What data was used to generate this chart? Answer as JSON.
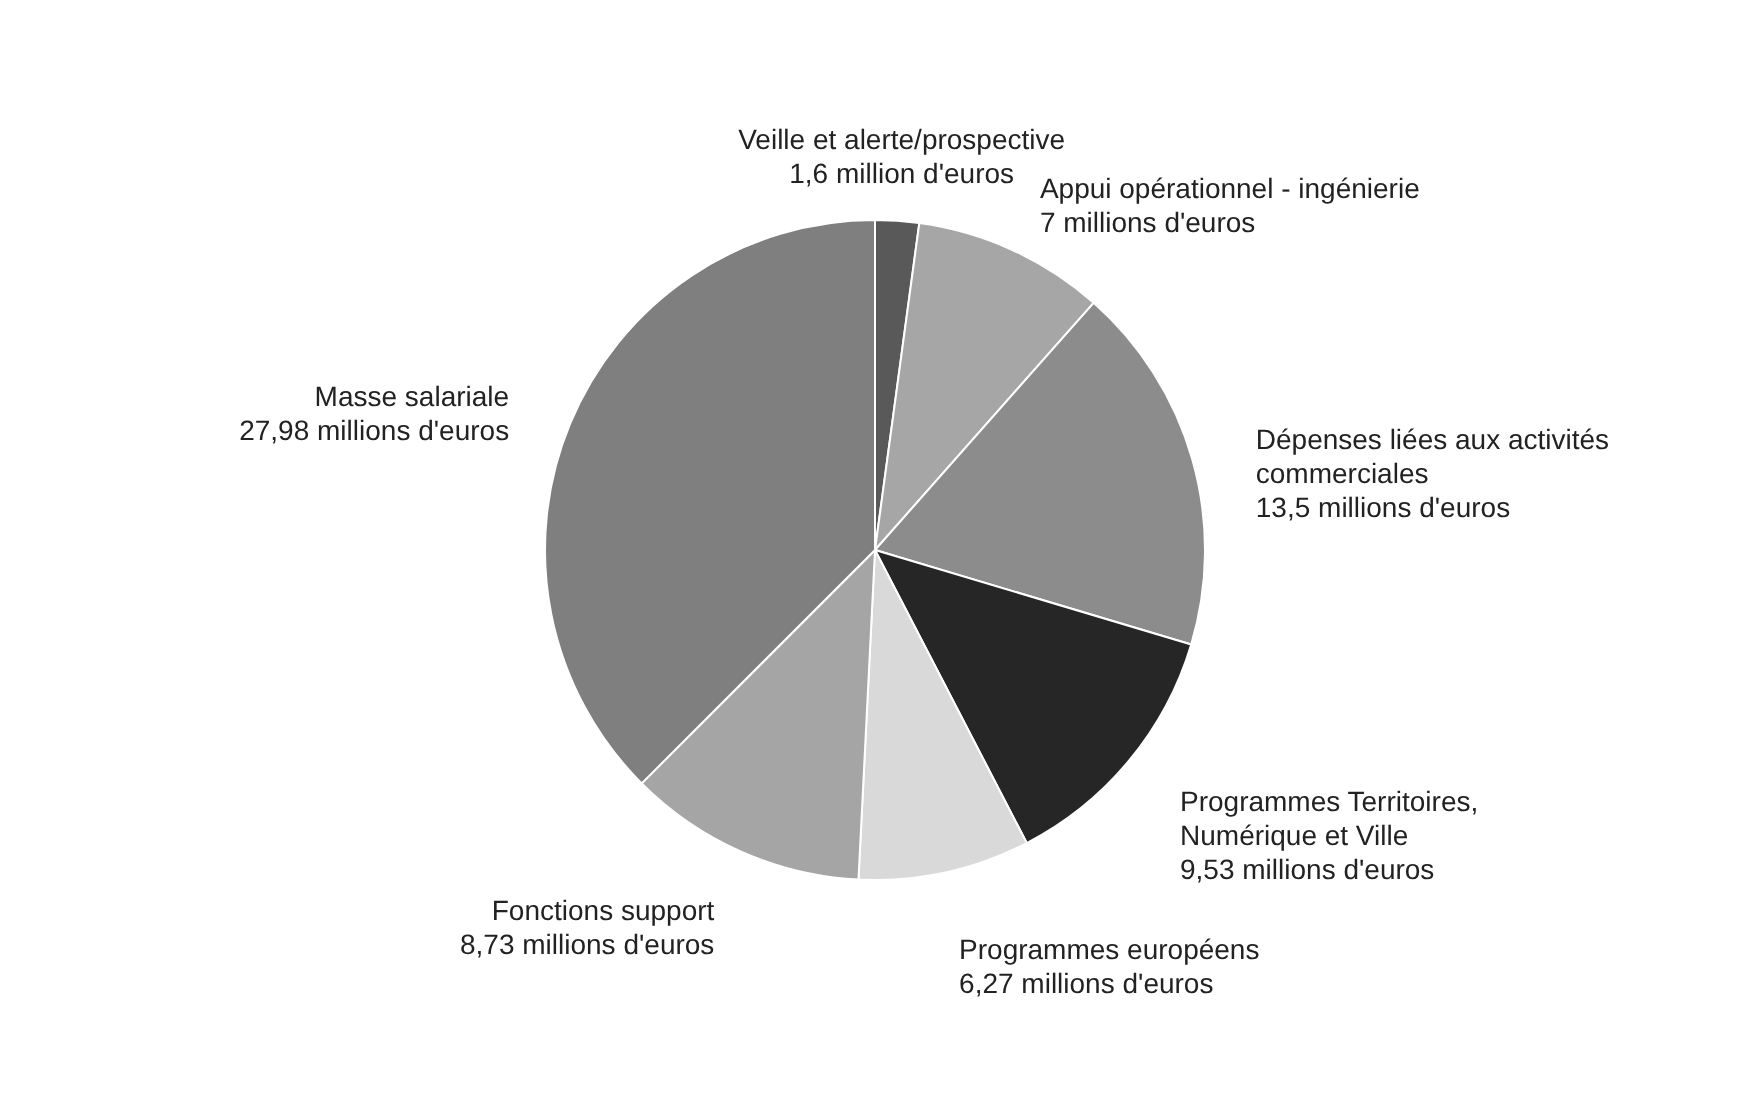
{
  "chart_data": {
    "type": "pie",
    "categories": [
      "Veille et alerte/prospective",
      "Appui opérationnel - ingénierie",
      "Dépenses liées aux activités commerciales",
      "Programmes Territoires, Numérique et Ville",
      "Programmes européens",
      "Fonctions support",
      "Masse salariale"
    ],
    "values": [
      1.6,
      7,
      13.5,
      9.53,
      6.27,
      8.73,
      27.98
    ],
    "value_labels": [
      "1,6 million d'euros",
      "7 millions d'euros",
      "13,5 millions d'euros",
      "9,53 millions d'euros",
      "6,27 millions d'euros",
      "8,73 millions d'euros",
      "27,98 millions d'euros"
    ],
    "colors": [
      "#595959",
      "#a6a6a6",
      "#8c8c8c",
      "#262626",
      "#d9d9d9",
      "#a5a5a5",
      "#7f7f7f"
    ],
    "legend": false
  }
}
